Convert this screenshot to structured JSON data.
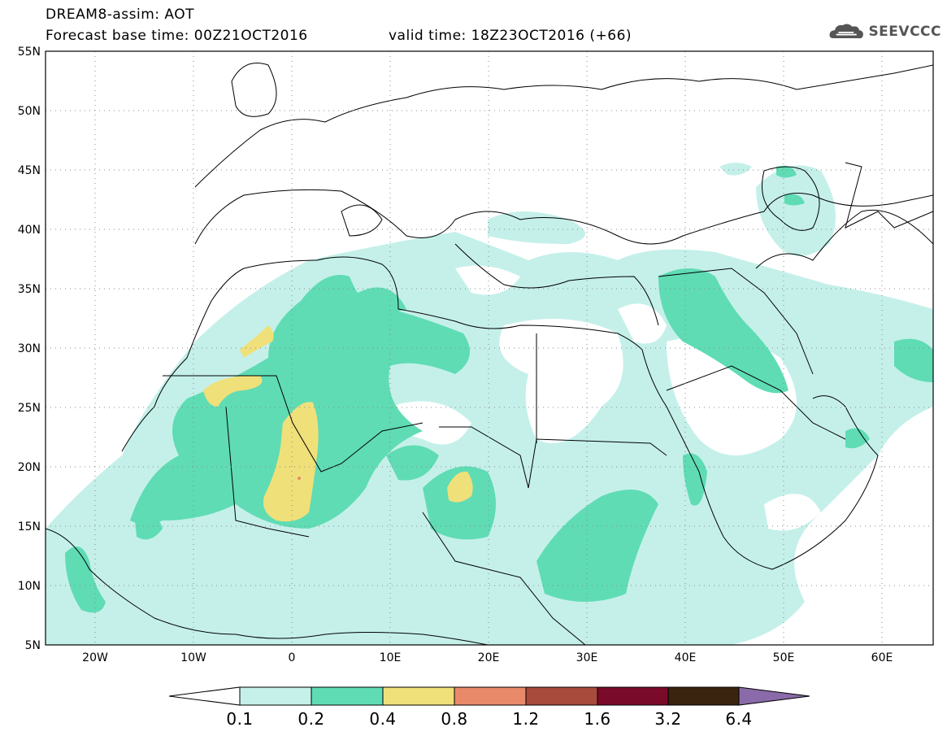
{
  "header": {
    "title": "DREAM8-assim: AOT",
    "base_time": "Forecast base time: 00Z21OCT2016",
    "valid_time": "valid time: 18Z23OCT2016 (+66)"
  },
  "logo": {
    "text": "SEEVCCC",
    "icon": "cloud-icon"
  },
  "map": {
    "lat_labels": [
      "55N",
      "50N",
      "45N",
      "40N",
      "35N",
      "30N",
      "25N",
      "20N",
      "15N",
      "10N",
      "5N"
    ],
    "lon_labels": [
      "20W",
      "10W",
      "0",
      "10E",
      "20E",
      "30E",
      "40E",
      "50E",
      "60E"
    ],
    "colors": {
      "c01": "#c5f0ea",
      "c02": "#5fdcb4",
      "c04": "#f0e07a",
      "c08": "#e8896a",
      "border": "#000000"
    }
  },
  "colorbar": {
    "labels": [
      "0.1",
      "0.2",
      "0.4",
      "0.8",
      "1.2",
      "1.6",
      "3.2",
      "6.4"
    ],
    "colors": [
      "#ffffff",
      "#c5f0ea",
      "#5fdcb4",
      "#f0e07a",
      "#e8896a",
      "#a84a3c",
      "#7a0a2a",
      "#3a2410",
      "#8a6aa8"
    ]
  }
}
